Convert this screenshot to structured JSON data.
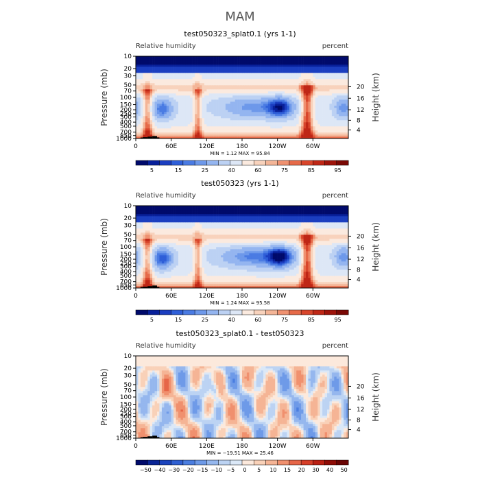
{
  "page_title": "MAM",
  "chart_data": [
    {
      "type": "heatmap",
      "title": "test050323_splat0.1 (yrs 1-1)",
      "variable_label": "Relative humidity",
      "units_label": "percent",
      "ylabel": "Pressure (mb)",
      "ylabel_right": "Height (km)",
      "xticks": [
        "0",
        "60E",
        "120E",
        "180",
        "120W",
        "60W"
      ],
      "xlim": [
        0,
        360
      ],
      "yticks": [
        "1000",
        "850",
        "700",
        "500",
        "400",
        "300",
        "250",
        "200",
        "150",
        "100",
        "70",
        "50",
        "30",
        "20",
        "10"
      ],
      "ylim": [
        1000,
        10
      ],
      "height_ticks": [
        "4",
        "8",
        "12",
        "16",
        "20"
      ],
      "stats": "MIN =     1.12   MAX =    95.84",
      "min": 1.12,
      "max": 95.84,
      "colorbar_labels": [
        "5",
        "15",
        "25",
        "40",
        "60",
        "75",
        "85",
        "95"
      ],
      "field": "ctrl"
    },
    {
      "type": "heatmap",
      "title": "test050323 (yrs 1-1)",
      "variable_label": "Relative humidity",
      "units_label": "percent",
      "ylabel": "Pressure (mb)",
      "ylabel_right": "Height (km)",
      "xticks": [
        "0",
        "60E",
        "120E",
        "180",
        "120W",
        "60W"
      ],
      "xlim": [
        0,
        360
      ],
      "yticks": [
        "1000",
        "850",
        "700",
        "500",
        "400",
        "300",
        "250",
        "200",
        "150",
        "100",
        "70",
        "50",
        "30",
        "20",
        "10"
      ],
      "ylim": [
        1000,
        10
      ],
      "height_ticks": [
        "4",
        "8",
        "12",
        "16",
        "20"
      ],
      "stats": "MIN =     1.24   MAX =    95.58",
      "min": 1.24,
      "max": 95.58,
      "colorbar_labels": [
        "5",
        "15",
        "25",
        "40",
        "60",
        "75",
        "85",
        "95"
      ],
      "field": "test"
    },
    {
      "type": "heatmap",
      "title": "test050323_splat0.1 - test050323",
      "variable_label": "Relative humidity",
      "units_label": "percent",
      "ylabel": "Pressure (mb)",
      "ylabel_right": "Height (km)",
      "xticks": [
        "0",
        "60E",
        "120E",
        "180",
        "120W",
        "60W"
      ],
      "xlim": [
        0,
        360
      ],
      "yticks": [
        "1000",
        "850",
        "700",
        "500",
        "400",
        "300",
        "250",
        "200",
        "150",
        "100",
        "70",
        "50",
        "30",
        "20",
        "10"
      ],
      "ylim": [
        1000,
        10
      ],
      "height_ticks": [
        "4",
        "8",
        "12",
        "16",
        "20"
      ],
      "stats": "MIN =   −19.51   MAX =    25.46",
      "min": -19.51,
      "max": 25.46,
      "colorbar_labels": [
        "−50",
        "−40",
        "−30",
        "−20",
        "−15",
        "−10",
        "−5",
        "0",
        "5",
        "10",
        "15",
        "20",
        "30",
        "40",
        "50"
      ],
      "field": "diff"
    }
  ],
  "colors": {
    "abs_palette": [
      "#000a6b",
      "#08209a",
      "#1b3ec0",
      "#2f5fd8",
      "#4a7be3",
      "#6d98ea",
      "#94b5f0",
      "#bcd1f3",
      "#dde7f6",
      "#fbeadf",
      "#f8d2bc",
      "#f4b597",
      "#ef9170",
      "#e66a49",
      "#d8452b",
      "#bf2716",
      "#9e130a",
      "#7a0804"
    ],
    "diff_palette": [
      "#000a6b",
      "#0a2596",
      "#1b44bd",
      "#3060d2",
      "#4b7ee0",
      "#6e9ae8",
      "#95b7ee",
      "#bcd3f3",
      "#dbe8f7",
      "#fce9dc",
      "#f9d1b8",
      "#f5b495",
      "#f0906e",
      "#e66648",
      "#d63e28",
      "#ba2013",
      "#8f0c06",
      "#6a0403"
    ],
    "topography": "#000000"
  }
}
